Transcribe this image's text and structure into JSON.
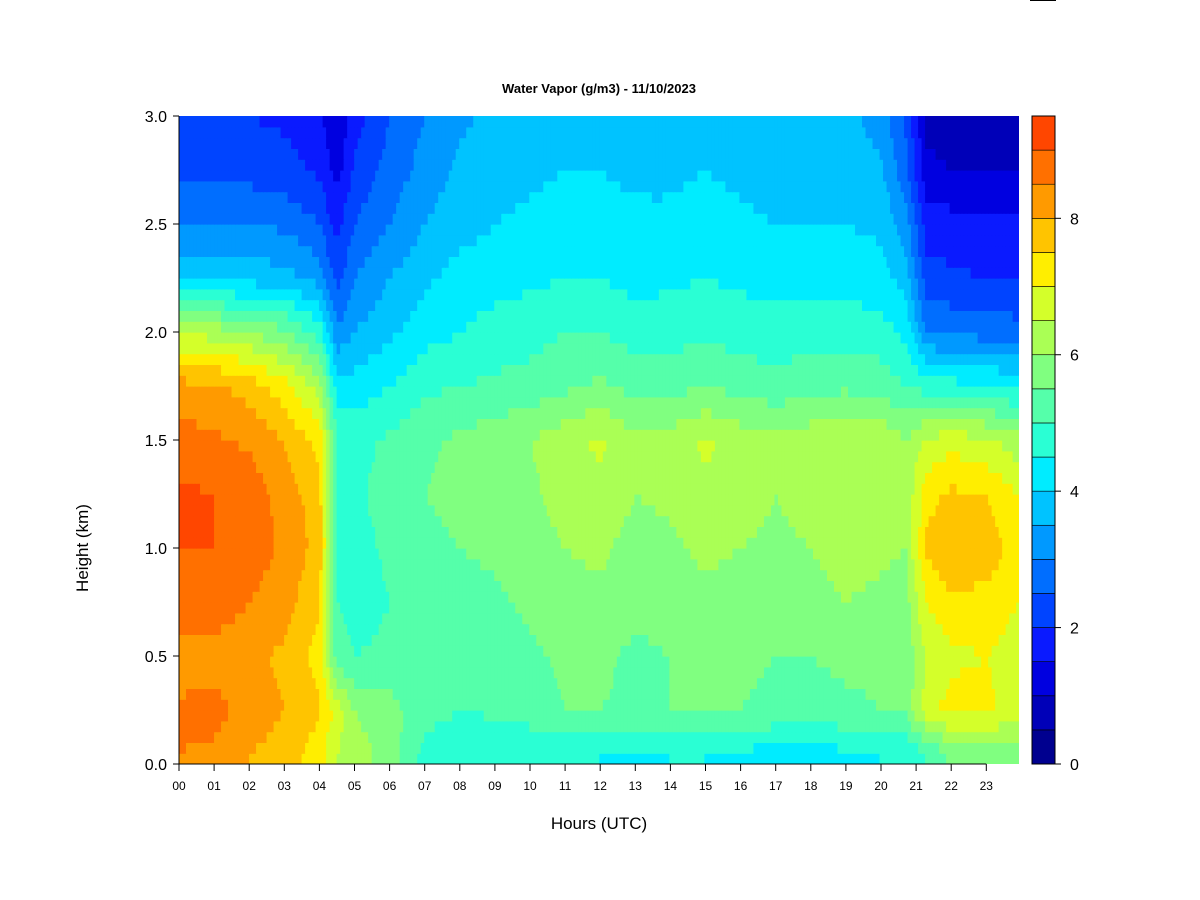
{
  "chart_data": {
    "type": "heatmap",
    "title": "Water Vapor (g/m3) - 11/10/2023",
    "xlabel": "Hours (UTC)",
    "ylabel": "Height (km)",
    "xlim": [
      0,
      23.95
    ],
    "ylim": [
      0.0,
      3.0
    ],
    "x_ticks": [
      0,
      1,
      2,
      3,
      4,
      5,
      6,
      7,
      8,
      9,
      10,
      11,
      12,
      13,
      14,
      15,
      16,
      17,
      18,
      19,
      20,
      21,
      22,
      23
    ],
    "x_tick_labels": [
      "00",
      "01",
      "02",
      "03",
      "04",
      "05",
      "06",
      "07",
      "08",
      "09",
      "10",
      "11",
      "12",
      "13",
      "14",
      "15",
      "16",
      "17",
      "18",
      "19",
      "20",
      "21",
      "22",
      "23"
    ],
    "y_ticks": [
      0.0,
      0.5,
      1.0,
      1.5,
      2.0,
      2.5,
      3.0
    ],
    "y_tick_labels": [
      "0.0",
      "0.5",
      "1.0",
      "1.5",
      "2.0",
      "2.5",
      "3.0"
    ],
    "heights_km": [
      0.05,
      0.25,
      0.5,
      0.75,
      1.0,
      1.25,
      1.5,
      1.75,
      2.0,
      2.25,
      2.5,
      2.75,
      3.0
    ],
    "hours": [
      0,
      1,
      2,
      3,
      4,
      4.5,
      5,
      6,
      7,
      8,
      9,
      10,
      11,
      12,
      13,
      14,
      15,
      16,
      17,
      18,
      19,
      20,
      20.7,
      21.3,
      22,
      23,
      23.9
    ],
    "values_by_height": [
      [
        8.5,
        8.4,
        8.0,
        7.8,
        7.2,
        6.5,
        6.2,
        5.8,
        4.8,
        4.6,
        4.5,
        4.5,
        4.5,
        4.5,
        4.4,
        4.5,
        4.5,
        4.4,
        4.3,
        4.3,
        4.4,
        4.5,
        4.6,
        5.0,
        5.6,
        5.8,
        5.6
      ],
      [
        8.6,
        8.7,
        8.3,
        8.0,
        7.6,
        6.8,
        6.0,
        5.7,
        5.2,
        5.0,
        5.1,
        5.3,
        5.5,
        5.5,
        5.4,
        5.5,
        5.6,
        5.5,
        5.4,
        5.3,
        5.4,
        5.5,
        5.6,
        6.8,
        7.2,
        7.1,
        6.8
      ],
      [
        8.2,
        8.3,
        8.1,
        7.9,
        7.3,
        5.2,
        5.0,
        5.1,
        5.0,
        5.1,
        5.2,
        5.4,
        5.6,
        5.6,
        5.4,
        5.5,
        5.7,
        5.6,
        5.5,
        5.5,
        5.6,
        5.6,
        5.7,
        6.5,
        6.9,
        7.0,
        6.8
      ],
      [
        8.8,
        8.8,
        8.5,
        8.2,
        7.6,
        5.0,
        4.8,
        5.0,
        5.2,
        5.3,
        5.4,
        5.6,
        5.8,
        5.9,
        5.6,
        5.7,
        5.9,
        5.8,
        5.7,
        5.8,
        6.0,
        5.9,
        5.8,
        7.0,
        7.4,
        7.3,
        7.0
      ],
      [
        9.0,
        9.0,
        8.8,
        8.4,
        7.8,
        5.0,
        4.8,
        5.1,
        5.4,
        5.5,
        5.6,
        5.8,
        6.0,
        6.1,
        5.8,
        5.9,
        6.1,
        6.0,
        5.9,
        6.0,
        6.2,
        6.1,
        6.0,
        7.6,
        8.0,
        7.8,
        7.3
      ],
      [
        9.1,
        9.0,
        8.8,
        8.3,
        7.7,
        5.0,
        4.9,
        5.2,
        5.5,
        5.6,
        5.7,
        5.9,
        6.2,
        6.4,
        6.0,
        6.1,
        6.4,
        6.2,
        6.0,
        6.2,
        6.4,
        6.3,
        6.1,
        7.3,
        7.6,
        7.5,
        7.0
      ],
      [
        8.7,
        8.6,
        8.4,
        8.0,
        7.3,
        5.0,
        4.8,
        5.1,
        5.4,
        5.6,
        5.8,
        6.0,
        6.3,
        6.6,
        6.1,
        6.2,
        6.6,
        6.3,
        6.1,
        6.3,
        6.5,
        6.4,
        6.0,
        6.6,
        6.8,
        6.6,
        6.2
      ],
      [
        8.2,
        8.1,
        7.8,
        7.2,
        6.3,
        4.2,
        4.2,
        4.5,
        4.9,
        5.0,
        5.1,
        5.2,
        5.4,
        5.6,
        5.3,
        5.3,
        5.5,
        5.3,
        5.2,
        5.3,
        5.4,
        5.3,
        5.0,
        4.8,
        4.7,
        4.6,
        4.4
      ],
      [
        6.4,
        6.3,
        6.0,
        5.6,
        4.8,
        3.1,
        3.5,
        3.9,
        4.3,
        4.5,
        4.7,
        4.8,
        5.0,
        5.0,
        4.8,
        4.8,
        4.9,
        4.8,
        4.7,
        4.8,
        4.8,
        4.7,
        4.4,
        3.0,
        2.9,
        2.8,
        2.7
      ],
      [
        3.8,
        3.8,
        3.8,
        3.7,
        3.3,
        2.3,
        3.0,
        3.5,
        3.9,
        4.2,
        4.3,
        4.4,
        4.5,
        4.5,
        4.3,
        4.4,
        4.5,
        4.4,
        4.3,
        4.3,
        4.3,
        4.2,
        3.8,
        2.2,
        2.1,
        2.0,
        2.0
      ],
      [
        3.0,
        3.0,
        3.0,
        2.9,
        2.5,
        1.8,
        2.5,
        3.0,
        3.5,
        3.8,
        4.0,
        4.1,
        4.2,
        4.2,
        4.1,
        4.1,
        4.2,
        4.1,
        4.0,
        4.0,
        4.0,
        3.9,
        3.2,
        1.8,
        1.7,
        1.6,
        1.6
      ],
      [
        2.3,
        2.3,
        2.3,
        2.2,
        1.9,
        1.3,
        2.1,
        2.7,
        3.2,
        3.6,
        3.8,
        3.9,
        4.0,
        4.0,
        3.9,
        3.9,
        4.0,
        3.9,
        3.8,
        3.8,
        3.8,
        3.6,
        2.7,
        1.2,
        1.0,
        1.0,
        1.0
      ],
      [
        2.0,
        2.0,
        2.0,
        1.9,
        1.6,
        0.9,
        1.8,
        2.5,
        3.0,
        3.4,
        3.6,
        3.7,
        3.8,
        3.8,
        3.7,
        3.7,
        3.8,
        3.7,
        3.6,
        3.6,
        3.6,
        3.3,
        2.4,
        0.8,
        0.6,
        0.5,
        0.5
      ]
    ],
    "colorbar": {
      "min": 0,
      "max": 9.5,
      "levels": [
        0,
        0.5,
        1,
        1.5,
        2,
        2.5,
        3,
        3.5,
        4,
        4.5,
        5,
        5.5,
        6,
        6.5,
        7,
        7.5,
        8,
        8.5,
        9,
        9.5
      ],
      "colors": [
        "#00008f",
        "#0000b8",
        "#0000e0",
        "#0a1aff",
        "#0044ff",
        "#006eff",
        "#0099ff",
        "#00c3ff",
        "#00ecff",
        "#2affd4",
        "#55ffaa",
        "#80ff80",
        "#aaff55",
        "#d4ff2a",
        "#ffee00",
        "#ffc400",
        "#ff9a00",
        "#ff7000",
        "#ff4600",
        "#ff1c00",
        "#e00000",
        "#b80000",
        "#8f0000"
      ],
      "ticks": [
        0,
        2,
        4,
        6,
        8
      ],
      "tick_labels": [
        "0",
        "2",
        "4",
        "6",
        "8"
      ]
    }
  }
}
